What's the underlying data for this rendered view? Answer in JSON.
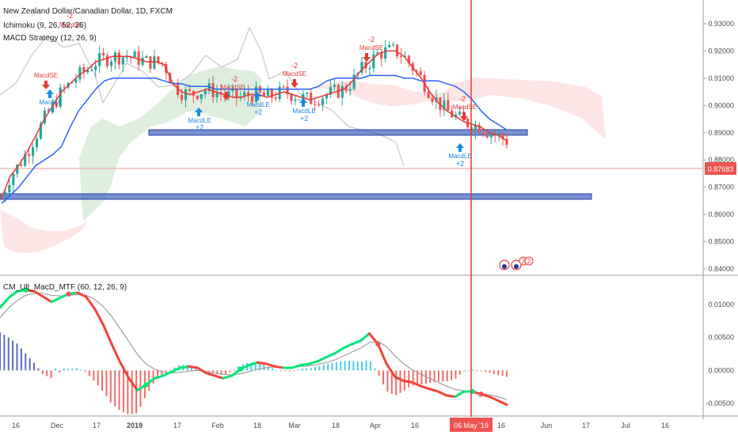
{
  "legend": {
    "symbol": "New Zealand Dollar/Canadian Dollar, 1D, FXCM",
    "ichimoku": "Ichimoku (9, 26, 52, 26)",
    "macd_strategy": "MACD Strategy (12, 26, 9)",
    "lower_indicator": "CM_Ult_MacD_MTF (60, 12, 26, 9)"
  },
  "price_axis": {
    "ticks": [
      "0.93000",
      "0.92000",
      "0.91000",
      "0.90000",
      "0.89000",
      "0.88000",
      "0.87000",
      "0.86000",
      "0.85000",
      "0.84000"
    ],
    "last_price": "0.87683"
  },
  "macd_axis": {
    "ticks": [
      "0.01000",
      "0.00500",
      "0.00000",
      "-0.00500"
    ]
  },
  "time_axis": {
    "ticks": [
      "16",
      "Dec",
      "17",
      "2019",
      "17",
      "Feb",
      "18",
      "Mar",
      "18",
      "Apr",
      "16",
      "16",
      "Jun",
      "17",
      "Jul",
      "16"
    ],
    "cursor_label": "06 May '19"
  },
  "signals": {
    "macd_se": "MacdSE",
    "macd_le": "MacdLE",
    "minus2": "-2",
    "plus2": "+2",
    "badge": "2"
  },
  "colors": {
    "bull": "#26a69a",
    "bear": "#ef5350",
    "kijun": "#2962ff",
    "tenkan": "#e53935",
    "zone": "#3f5fbf",
    "cursor": "#e53935",
    "macd_up": "#00e676",
    "macd_down": "#f44336",
    "signal_line": "#9e9e9e"
  },
  "chart_data": {
    "type": "candlestick",
    "interval": "1D",
    "ylim": [
      0.8375,
      0.9345
    ],
    "support_zones": [
      0.8897,
      0.8664
    ],
    "cursor_date": "06 May '19",
    "ichimoku_tenkan": [
      [
        0.866,
        0.874,
        0.878,
        0.883,
        0.889,
        0.895,
        0.9,
        0.905,
        0.908,
        0.911,
        0.913,
        0.916,
        0.917,
        0.918,
        0.918,
        0.918,
        0.917,
        0.916,
        0.916,
        0.915,
        0.908,
        0.905,
        0.904,
        0.905,
        0.906,
        0.905,
        0.904,
        0.903,
        0.903,
        0.904,
        0.904,
        0.903,
        0.904,
        0.905,
        0.904,
        0.903,
        0.902,
        0.903,
        0.904,
        0.905,
        0.906,
        0.909,
        0.913,
        0.916,
        0.919,
        0.92,
        0.92,
        0.918,
        0.914,
        0.91,
        0.905,
        0.901,
        0.898,
        0.896,
        0.894,
        0.893,
        0.892,
        0.89,
        0.889,
        0.887
      ]
    ],
    "ichimoku_kijun": [
      [
        0.864,
        0.867,
        0.87,
        0.874,
        0.878,
        0.88,
        0.882,
        0.885,
        0.892,
        0.898,
        0.902,
        0.906,
        0.909,
        0.91,
        0.91,
        0.91,
        0.91,
        0.91,
        0.91,
        0.909,
        0.908,
        0.908,
        0.907,
        0.907,
        0.907,
        0.906,
        0.906,
        0.906,
        0.906,
        0.906,
        0.906,
        0.906,
        0.906,
        0.906,
        0.906,
        0.906,
        0.906,
        0.907,
        0.909,
        0.91,
        0.91,
        0.91,
        0.91,
        0.911,
        0.911,
        0.911,
        0.911,
        0.91,
        0.91,
        0.909,
        0.909,
        0.909,
        0.908,
        0.907,
        0.905,
        0.902,
        0.898,
        0.895,
        0.893,
        0.891
      ]
    ],
    "macd": {
      "ylim": [
        -0.0062,
        0.0128
      ],
      "macd_line": [
        0.0095,
        0.011,
        0.012,
        0.0122,
        0.012,
        0.0112,
        0.0104,
        0.011,
        0.0116,
        0.0118,
        0.0112,
        0.0094,
        0.007,
        0.004,
        0.0012,
        -0.0012,
        -0.003,
        -0.0022,
        -0.0012,
        -0.0008,
        -0.0002,
        0.0004,
        0.0006,
        0.0004,
        -0.0004,
        -0.0008,
        -0.0012,
        -0.0008,
        0.0002,
        0.0008,
        0.0012,
        0.001,
        0.0006,
        0.0004,
        0.0004,
        0.0008,
        0.001,
        0.0014,
        0.002,
        0.0026,
        0.0034,
        0.004,
        0.0045,
        0.0056,
        0.004,
        0.001,
        -0.001,
        -0.0016,
        -0.0018,
        -0.0024,
        -0.0028,
        -0.0032,
        -0.0038,
        -0.004,
        -0.0032,
        -0.0032,
        -0.0036,
        -0.004,
        -0.0046,
        -0.0052
      ],
      "signal_line": [
        0.008,
        0.0095,
        0.0106,
        0.0114,
        0.0117,
        0.0117,
        0.0114,
        0.0113,
        0.0114,
        0.0115,
        0.0114,
        0.0108,
        0.0097,
        0.0082,
        0.0063,
        0.0044,
        0.0024,
        0.001,
        0.0002,
        -0.0003,
        -0.0004,
        -0.0003,
        -0.0001,
        0.0,
        -0.0002,
        -0.0004,
        -0.0006,
        -0.0007,
        -0.0005,
        -0.0002,
        0.0002,
        0.0004,
        0.0005,
        0.0005,
        0.0005,
        0.0006,
        0.0007,
        0.0009,
        0.0012,
        0.0016,
        0.0022,
        0.0028,
        0.0034,
        0.0042,
        0.0044,
        0.0036,
        0.0022,
        0.001,
        0.0001,
        -0.0006,
        -0.0012,
        -0.0018,
        -0.0024,
        -0.0029,
        -0.0031,
        -0.0033,
        -0.0035,
        -0.0037,
        -0.004,
        -0.0044
      ]
    }
  }
}
